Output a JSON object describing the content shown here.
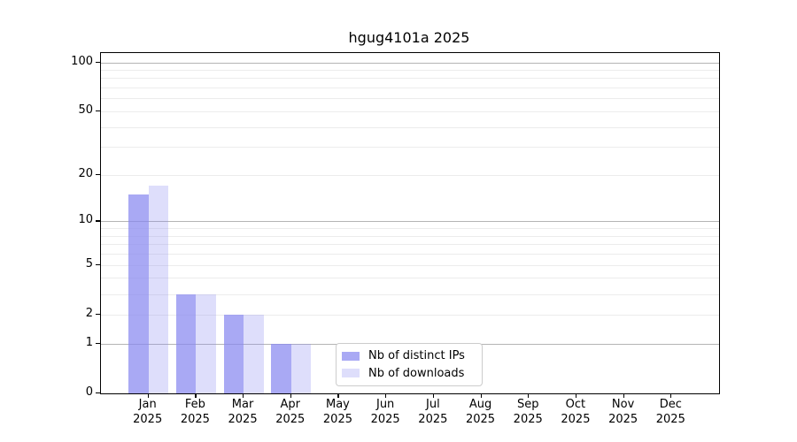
{
  "title": "hgug4101a 2025",
  "chart_data": {
    "type": "bar",
    "title": "hgug4101a 2025",
    "xlabel": "",
    "ylabel": "",
    "scale": "log10(1+x)",
    "categories": [
      "Jan",
      "Feb",
      "Mar",
      "Apr",
      "May",
      "Jun",
      "Jul",
      "Aug",
      "Sep",
      "Oct",
      "Nov",
      "Dec"
    ],
    "x_tick_second_line": "2025",
    "series": [
      {
        "name": "Nb of distinct IPs",
        "color": "#8888f0",
        "alpha": 0.72,
        "values": [
          15,
          3,
          2,
          1,
          0,
          0,
          0,
          0,
          0,
          0,
          0,
          0
        ]
      },
      {
        "name": "Nb of downloads",
        "color": "#8888f0",
        "alpha": 0.28,
        "values": [
          17,
          3,
          2,
          1,
          0,
          0,
          0,
          0,
          0,
          0,
          0,
          0
        ]
      }
    ],
    "y_ticks": [
      0,
      1,
      2,
      5,
      10,
      20,
      50,
      100
    ],
    "y_gridlines_major": [
      1,
      10,
      100
    ],
    "y_gridlines_minor": [
      2,
      3,
      4,
      5,
      6,
      7,
      8,
      9,
      20,
      30,
      40,
      50,
      60,
      70,
      80,
      90
    ],
    "ylim": [
      0,
      114
    ],
    "grid": true,
    "legend_position": "inside-bottom-center"
  },
  "legend": {
    "items": [
      {
        "label": "Nb of distinct IPs"
      },
      {
        "label": "Nb of downloads"
      }
    ]
  },
  "colors": {
    "bar_base": "#8888f0",
    "grid_major": "#b4b4b4",
    "grid_minor": "#ececec",
    "axis": "#000000",
    "legend_border": "#cccccc",
    "background": "#ffffff"
  }
}
